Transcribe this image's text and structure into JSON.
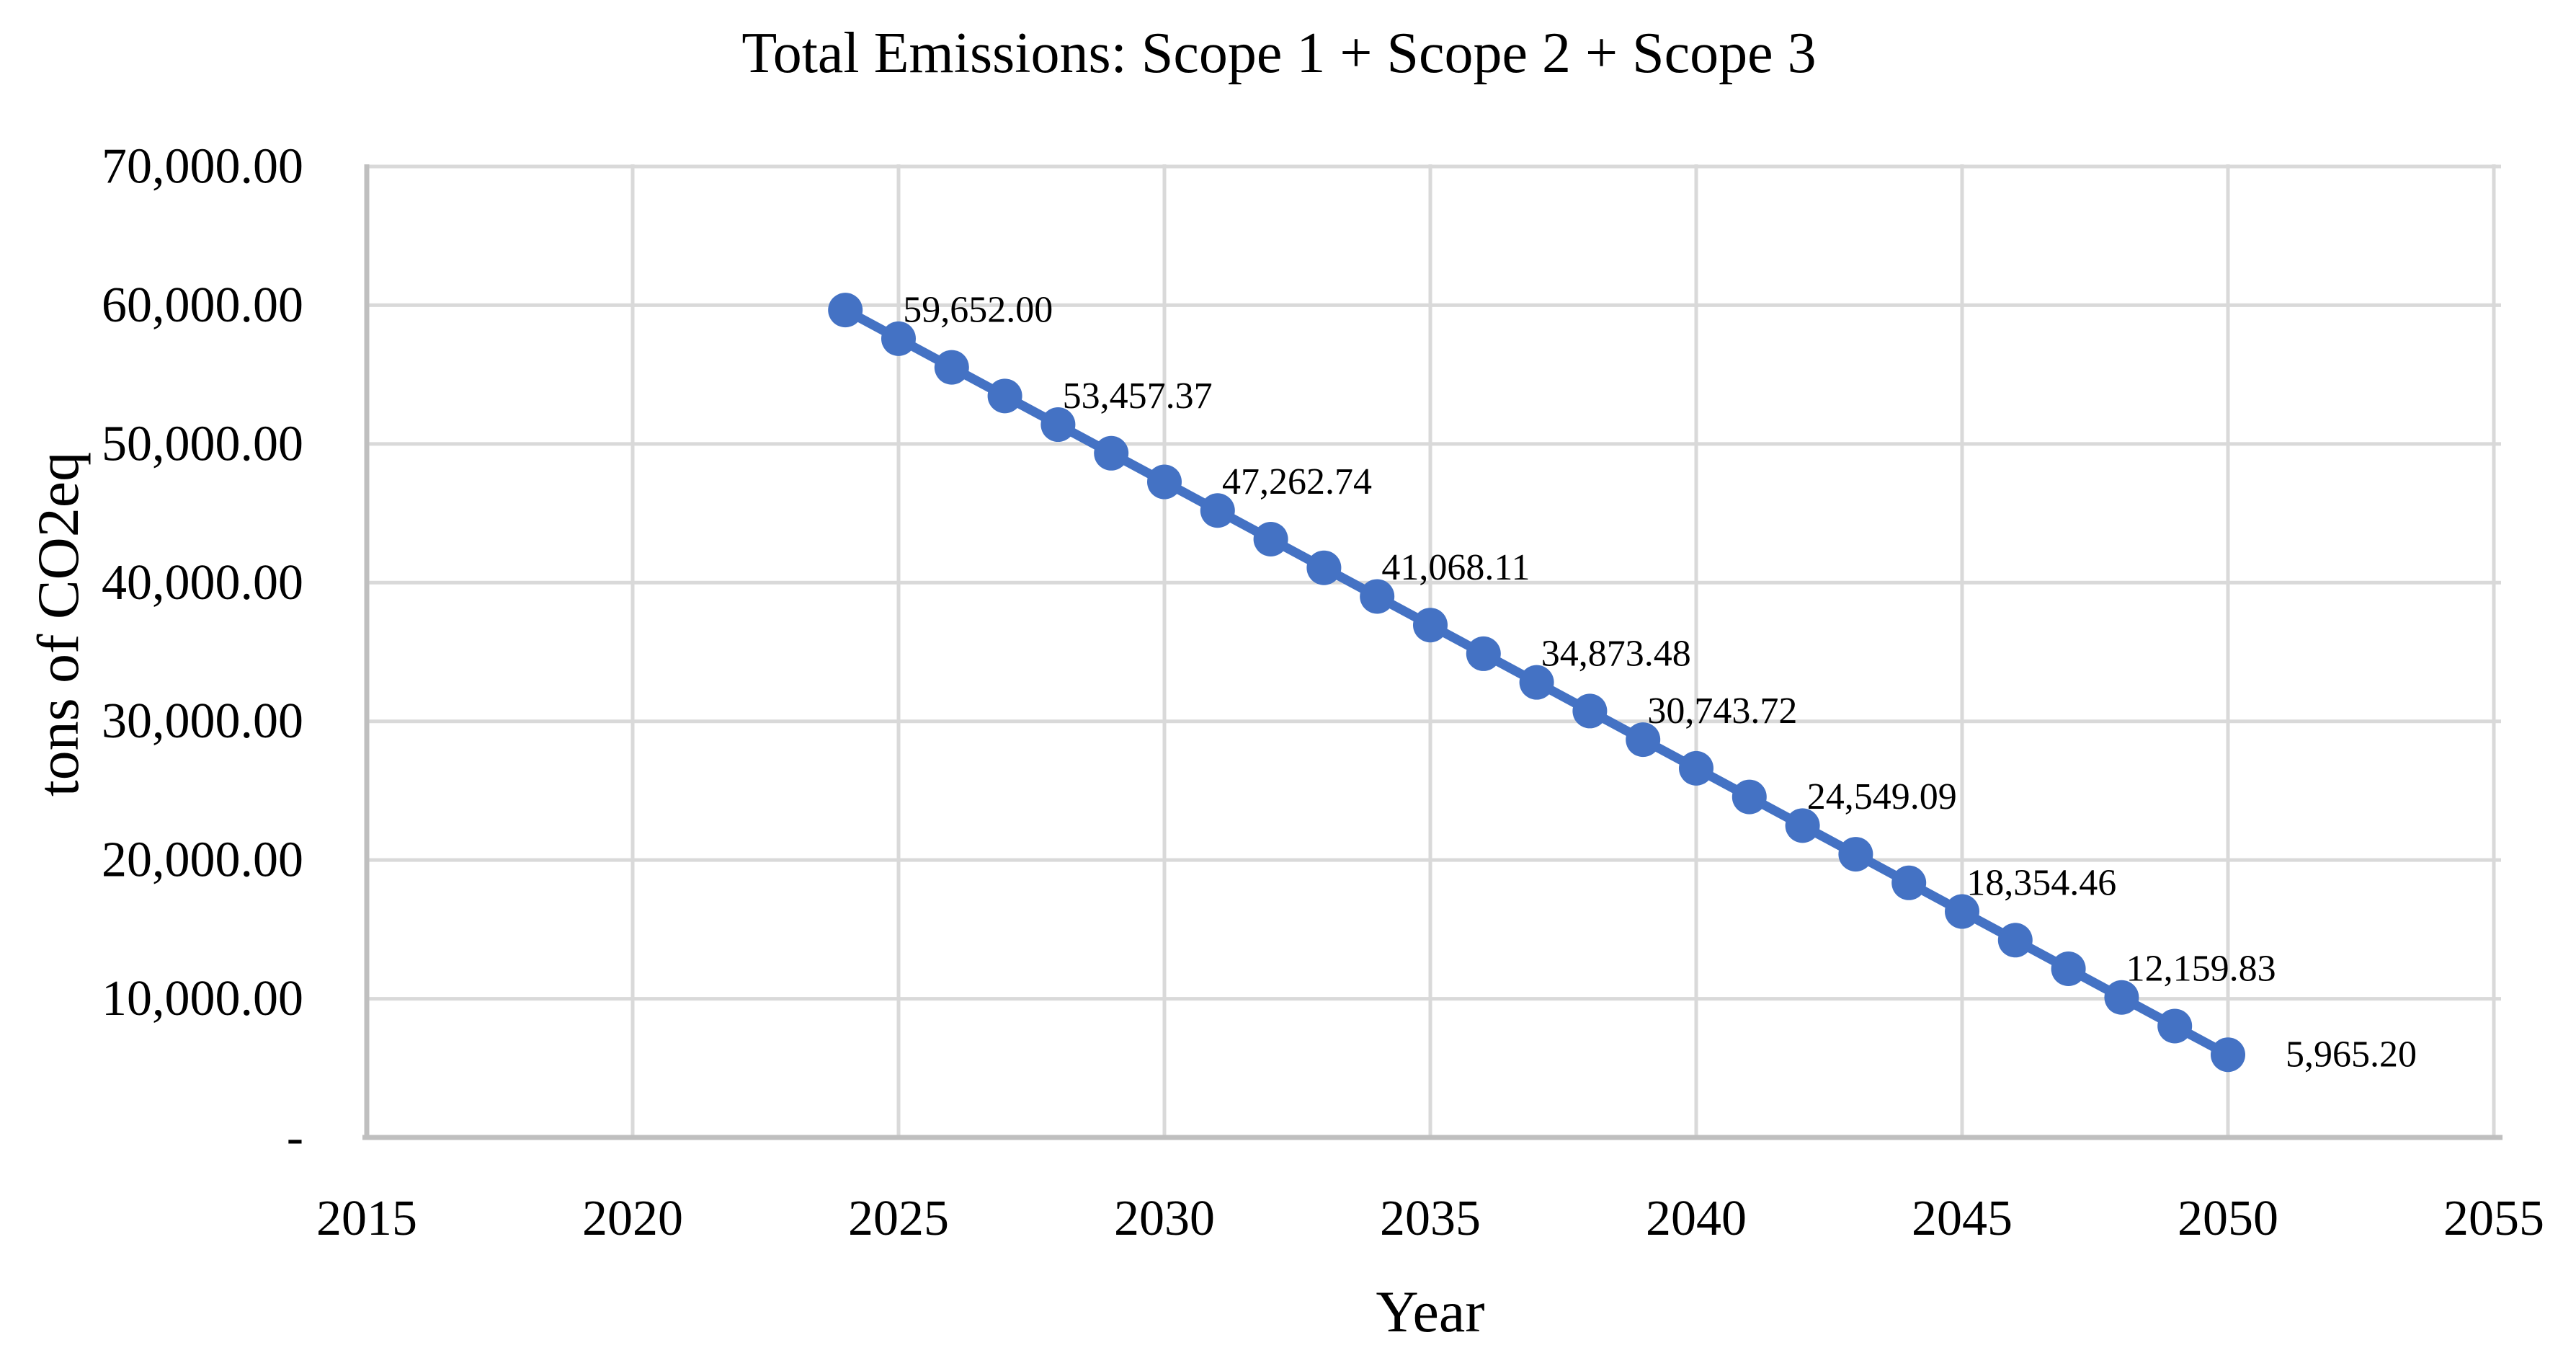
{
  "chart_data": {
    "type": "line",
    "title": "Total Emissions: Scope 1 + Scope 2 + Scope 3",
    "xlabel": "Year",
    "ylabel": "tons of CO2eq",
    "xlim": [
      2015,
      2055
    ],
    "ylim": [
      0,
      70000
    ],
    "x_ticks": [
      2015,
      2020,
      2025,
      2030,
      2035,
      2040,
      2045,
      2050,
      2055
    ],
    "y_ticks": [
      {
        "value": 70000,
        "label": "70,000.00"
      },
      {
        "value": 60000,
        "label": "60,000.00"
      },
      {
        "value": 50000,
        "label": "50,000.00"
      },
      {
        "value": 40000,
        "label": "40,000.00"
      },
      {
        "value": 30000,
        "label": "30,000.00"
      },
      {
        "value": 20000,
        "label": "20,000.00"
      },
      {
        "value": 10000,
        "label": "10,000.00"
      },
      {
        "value": 0,
        "label": "-"
      }
    ],
    "grid": true,
    "legend": false,
    "series": [
      {
        "marker": "circle",
        "color": "#4472C4",
        "x": [
          2024,
          2025,
          2026,
          2027,
          2028,
          2029,
          2030,
          2031,
          2032,
          2033,
          2034,
          2035,
          2036,
          2037,
          2038,
          2039,
          2040,
          2041,
          2042,
          2043,
          2044,
          2045,
          2046,
          2047,
          2048,
          2049,
          2050
        ],
        "y": [
          59652.0,
          57587.12,
          55522.25,
          53457.37,
          51392.49,
          49327.62,
          47262.74,
          45197.86,
          43132.98,
          41068.11,
          39003.23,
          36938.35,
          34873.48,
          32808.6,
          30743.72,
          28678.85,
          26613.97,
          24549.09,
          22484.22,
          20419.34,
          18354.46,
          16289.58,
          14224.71,
          12159.83,
          10094.95,
          8030.08,
          5965.2
        ]
      }
    ],
    "point_labels": [
      {
        "x": 2024,
        "label": "59,652.00"
      },
      {
        "x": 2027,
        "label": "53,457.37"
      },
      {
        "x": 2030,
        "label": "47,262.74"
      },
      {
        "x": 2033,
        "label": "41,068.11"
      },
      {
        "x": 2036,
        "label": "34,873.48"
      },
      {
        "x": 2038,
        "label": "30,743.72"
      },
      {
        "x": 2041,
        "label": "24,549.09"
      },
      {
        "x": 2044,
        "label": "18,354.46"
      },
      {
        "x": 2047,
        "label": "12,159.83"
      },
      {
        "x": 2050,
        "label": "5,965.20"
      }
    ],
    "colors": {
      "series": "#4472C4",
      "gridline": "#D9D9D9",
      "axis_line": "#BFBFBF",
      "text": "#000000",
      "background": "#FFFFFF"
    }
  }
}
